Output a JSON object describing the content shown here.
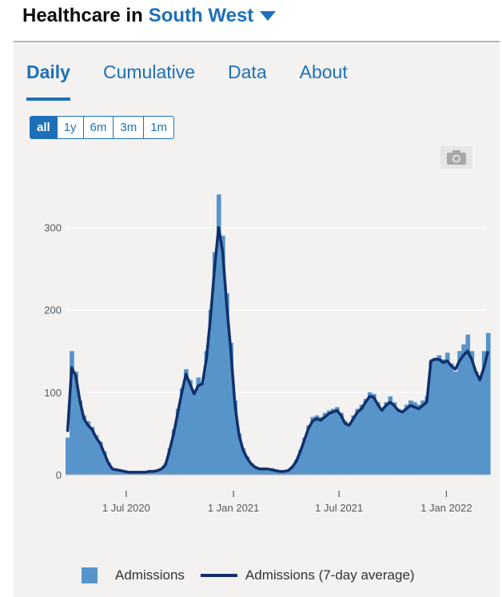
{
  "header": {
    "title": "Healthcare in",
    "area": "South West"
  },
  "tabs": [
    {
      "label": "Daily",
      "active": true
    },
    {
      "label": "Cumulative"
    },
    {
      "label": "Data"
    },
    {
      "label": "About"
    }
  ],
  "ranges": [
    {
      "label": "all",
      "selected": true
    },
    {
      "label": "1y"
    },
    {
      "label": "6m"
    },
    {
      "label": "3m"
    },
    {
      "label": "1m"
    }
  ],
  "icons": {
    "area_dropdown": "chevron-down-icon",
    "export": "camera-icon"
  },
  "colors": {
    "accent": "#1d70b8",
    "bar": "#5694ca",
    "line": "#12306b",
    "card": "#f3f2f1"
  },
  "chart_data": {
    "type": "bar",
    "title": "",
    "xlabel": "",
    "ylabel": "",
    "ylim": [
      0,
      350
    ],
    "yticks": [
      0,
      100,
      200,
      300
    ],
    "xticks": [
      "1 Jul 2020",
      "1 Jan 2021",
      "1 Jul 2021",
      "1 Jan 2022"
    ],
    "x_range": [
      "2020-03-19",
      "2022-03-10"
    ],
    "grid": true,
    "legend_position": "bottom",
    "series": [
      {
        "name": "Admissions",
        "kind": "bar",
        "sampled_weekly": true,
        "dates": [
          "2020-03-19",
          "2020-03-26",
          "2020-04-02",
          "2020-04-09",
          "2020-04-16",
          "2020-04-23",
          "2020-04-30",
          "2020-05-07",
          "2020-05-14",
          "2020-05-21",
          "2020-05-28",
          "2020-06-04",
          "2020-06-11",
          "2020-06-18",
          "2020-06-25",
          "2020-07-02",
          "2020-07-09",
          "2020-07-16",
          "2020-07-23",
          "2020-07-30",
          "2020-08-06",
          "2020-08-13",
          "2020-08-20",
          "2020-08-27",
          "2020-09-03",
          "2020-09-10",
          "2020-09-17",
          "2020-09-24",
          "2020-10-01",
          "2020-10-08",
          "2020-10-15",
          "2020-10-22",
          "2020-10-29",
          "2020-11-05",
          "2020-11-12",
          "2020-11-19",
          "2020-11-26",
          "2020-12-03",
          "2020-12-10",
          "2020-12-17",
          "2020-12-24",
          "2020-12-31",
          "2021-01-07",
          "2021-01-14",
          "2021-01-21",
          "2021-01-28",
          "2021-02-04",
          "2021-02-11",
          "2021-02-18",
          "2021-02-25",
          "2021-03-04",
          "2021-03-11",
          "2021-03-18",
          "2021-03-25",
          "2021-04-01",
          "2021-04-08",
          "2021-04-15",
          "2021-04-22",
          "2021-04-29",
          "2021-05-06",
          "2021-05-13",
          "2021-05-20",
          "2021-05-27",
          "2021-06-03",
          "2021-06-10",
          "2021-06-17",
          "2021-06-24",
          "2021-07-01",
          "2021-07-08",
          "2021-07-15",
          "2021-07-22",
          "2021-07-29",
          "2021-08-05",
          "2021-08-12",
          "2021-08-19",
          "2021-08-26",
          "2021-09-02",
          "2021-09-09",
          "2021-09-16",
          "2021-09-23",
          "2021-09-30",
          "2021-10-07",
          "2021-10-14",
          "2021-10-21",
          "2021-10-28",
          "2021-11-04",
          "2021-11-11",
          "2021-11-18",
          "2021-11-25",
          "2021-12-02",
          "2021-12-09",
          "2021-12-16",
          "2021-12-23",
          "2021-12-30",
          "2022-01-06",
          "2022-01-13",
          "2022-01-20",
          "2022-01-27",
          "2022-02-03",
          "2022-02-10",
          "2022-02-17",
          "2022-02-24",
          "2022-03-03",
          "2022-03-10"
        ],
        "values": [
          45,
          150,
          125,
          90,
          72,
          65,
          58,
          48,
          40,
          28,
          15,
          8,
          6,
          5,
          4,
          4,
          3,
          3,
          3,
          4,
          4,
          4,
          6,
          8,
          14,
          32,
          55,
          80,
          105,
          128,
          115,
          100,
          118,
          112,
          150,
          200,
          270,
          340,
          290,
          220,
          160,
          90,
          50,
          32,
          22,
          14,
          10,
          8,
          8,
          8,
          8,
          6,
          5,
          5,
          6,
          10,
          18,
          30,
          45,
          60,
          70,
          72,
          70,
          75,
          78,
          80,
          82,
          75,
          65,
          62,
          72,
          80,
          85,
          92,
          100,
          98,
          88,
          80,
          88,
          95,
          88,
          80,
          78,
          85,
          90,
          88,
          85,
          90,
          95,
          138,
          142,
          145,
          140,
          148,
          135,
          125,
          150,
          158,
          170,
          150,
          125,
          118,
          150,
          172
        ]
      },
      {
        "name": "Admissions (7-day average)",
        "kind": "line",
        "dates": [
          "2020-03-19",
          "2020-03-26",
          "2020-04-02",
          "2020-04-09",
          "2020-04-16",
          "2020-04-23",
          "2020-04-30",
          "2020-05-07",
          "2020-05-14",
          "2020-05-21",
          "2020-05-28",
          "2020-06-04",
          "2020-06-11",
          "2020-06-18",
          "2020-06-25",
          "2020-07-02",
          "2020-07-09",
          "2020-07-16",
          "2020-07-23",
          "2020-07-30",
          "2020-08-06",
          "2020-08-13",
          "2020-08-20",
          "2020-08-27",
          "2020-09-03",
          "2020-09-10",
          "2020-09-17",
          "2020-09-24",
          "2020-10-01",
          "2020-10-08",
          "2020-10-15",
          "2020-10-22",
          "2020-10-29",
          "2020-11-05",
          "2020-11-12",
          "2020-11-19",
          "2020-11-26",
          "2020-12-03",
          "2020-12-10",
          "2020-12-17",
          "2020-12-24",
          "2020-12-31",
          "2021-01-07",
          "2021-01-14",
          "2021-01-21",
          "2021-01-28",
          "2021-02-04",
          "2021-02-11",
          "2021-02-18",
          "2021-02-25",
          "2021-03-04",
          "2021-03-11",
          "2021-03-18",
          "2021-03-25",
          "2021-04-01",
          "2021-04-08",
          "2021-04-15",
          "2021-04-22",
          "2021-04-29",
          "2021-05-06",
          "2021-05-13",
          "2021-05-20",
          "2021-05-27",
          "2021-06-03",
          "2021-06-10",
          "2021-06-17",
          "2021-06-24",
          "2021-07-01",
          "2021-07-08",
          "2021-07-15",
          "2021-07-22",
          "2021-07-29",
          "2021-08-05",
          "2021-08-12",
          "2021-08-19",
          "2021-08-26",
          "2021-09-02",
          "2021-09-09",
          "2021-09-16",
          "2021-09-23",
          "2021-09-30",
          "2021-10-07",
          "2021-10-14",
          "2021-10-21",
          "2021-10-28",
          "2021-11-04",
          "2021-11-11",
          "2021-11-18",
          "2021-11-25",
          "2021-12-02",
          "2021-12-09",
          "2021-12-16",
          "2021-12-23",
          "2021-12-30",
          "2022-01-06",
          "2022-01-13",
          "2022-01-20",
          "2022-01-27",
          "2022-02-03",
          "2022-02-10",
          "2022-02-17",
          "2022-02-24",
          "2022-03-03",
          "2022-03-10"
        ],
        "values": [
          52,
          130,
          120,
          90,
          68,
          60,
          55,
          45,
          38,
          26,
          14,
          7,
          6,
          5,
          4,
          3,
          3,
          3,
          3,
          3,
          4,
          4,
          5,
          7,
          12,
          30,
          50,
          75,
          100,
          122,
          110,
          98,
          108,
          110,
          140,
          190,
          250,
          300,
          270,
          205,
          150,
          85,
          48,
          30,
          20,
          13,
          9,
          7,
          7,
          7,
          6,
          5,
          4,
          4,
          5,
          9,
          16,
          28,
          42,
          56,
          65,
          68,
          66,
          70,
          74,
          76,
          78,
          72,
          62,
          60,
          68,
          76,
          80,
          88,
          95,
          94,
          85,
          78,
          84,
          88,
          84,
          78,
          76,
          80,
          84,
          82,
          80,
          84,
          88,
          138,
          140,
          140,
          136,
          138,
          132,
          128,
          138,
          145,
          150,
          140,
          125,
          115,
          130,
          150
        ]
      }
    ]
  }
}
